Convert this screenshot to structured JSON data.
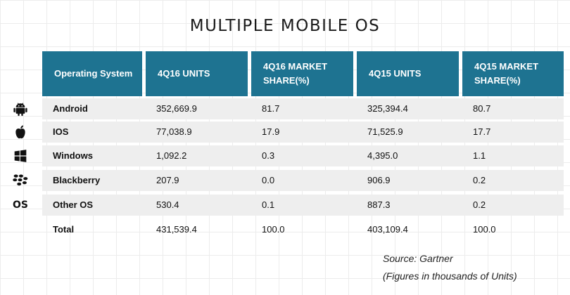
{
  "title": "MULTIPLE MOBILE OS",
  "headers": [
    "Operating System",
    "4Q16 UNITS",
    "4Q16 MARKET SHARE(%)",
    "4Q15 UNITS",
    "4Q15 MARKET SHARE(%)"
  ],
  "rows": [
    {
      "icon": "android-icon",
      "os": "Android",
      "u16": "352,669.9",
      "s16": "81.7",
      "u15": "325,394.4",
      "s15": "80.7"
    },
    {
      "icon": "apple-icon",
      "os": "IOS",
      "u16": "77,038.9",
      "s16": "17.9",
      "u15": "71,525.9",
      "s15": "17.7"
    },
    {
      "icon": "windows-icon",
      "os": "Windows",
      "u16": "1,092.2",
      "s16": "0.3",
      "u15": "4,395.0",
      "s15": "1.1"
    },
    {
      "icon": "blackberry-icon",
      "os": "Blackberry",
      "u16": "207.9",
      "s16": "0.0",
      "u15": "906.9",
      "s15": "0.2"
    },
    {
      "icon": "os-text-icon",
      "icon_text": "OS",
      "os": "Other OS",
      "u16": "530.4",
      "s16": "0.1",
      "u15": "887.3",
      "s15": "0.2"
    },
    {
      "os": "Total",
      "u16": "431,539.4",
      "s16": "100.0",
      "u15": "403,109.4",
      "s15": "100.0"
    }
  ],
  "source": "Source: Gartner",
  "note": "(Figures in thousands of Units)",
  "colors": {
    "header_bg": "#1e7391",
    "header_text": "#ffffff",
    "row_band": "#eeeeee"
  },
  "chart_data": {
    "type": "table",
    "title": "MULTIPLE MOBILE OS",
    "columns": [
      "Operating System",
      "4Q16 UNITS",
      "4Q16 MARKET SHARE(%)",
      "4Q15 UNITS",
      "4Q15 MARKET SHARE(%)"
    ],
    "rows": [
      [
        "Android",
        352669.9,
        81.7,
        325394.4,
        80.7
      ],
      [
        "IOS",
        77038.9,
        17.9,
        71525.9,
        17.7
      ],
      [
        "Windows",
        1092.2,
        0.3,
        4395.0,
        1.1
      ],
      [
        "Blackberry",
        207.9,
        0.0,
        906.9,
        0.2
      ],
      [
        "Other OS",
        530.4,
        0.1,
        887.3,
        0.2
      ],
      [
        "Total",
        431539.4,
        100.0,
        403109.4,
        100.0
      ]
    ]
  }
}
